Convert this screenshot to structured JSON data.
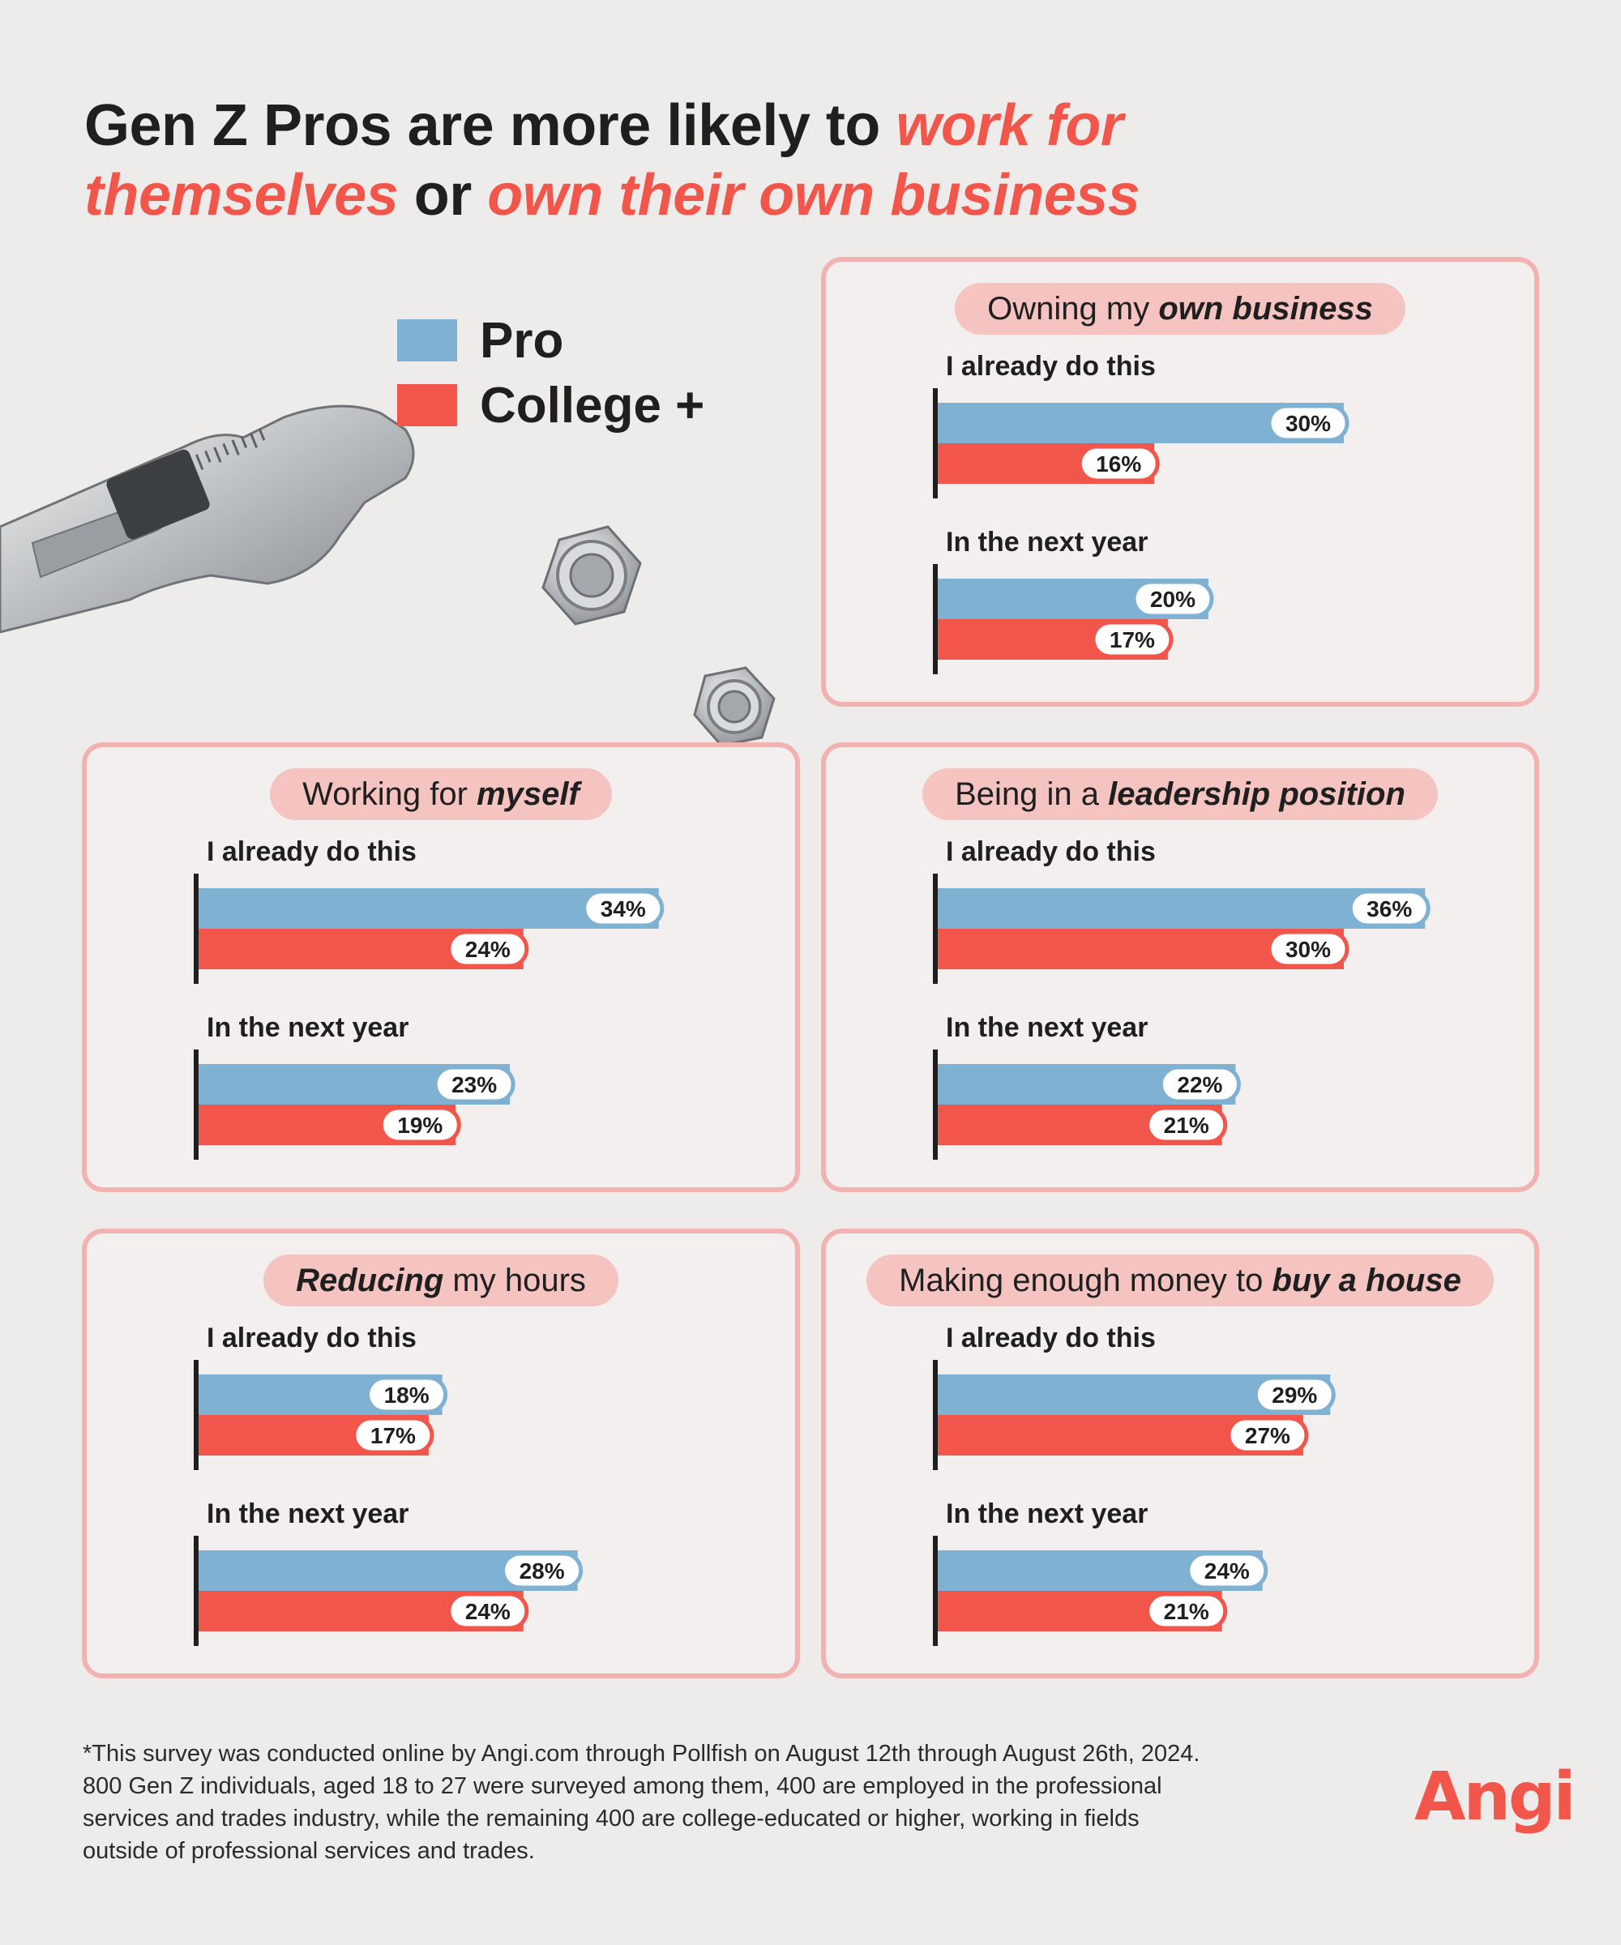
{
  "headline": {
    "part1": "Gen Z Pros are more likely to ",
    "accent1": "work for themselves",
    "part2": " or ",
    "accent2": "own their own business"
  },
  "legend": {
    "items": [
      {
        "label": "Pro",
        "color": "#7fb2d2"
      },
      {
        "label": "College +",
        "color": "#f2554a"
      }
    ]
  },
  "colors": {
    "pro": "#7fb2d2",
    "college": "#f2554a",
    "panel_border": "#f2b3b0",
    "pill": "#f5c4c0"
  },
  "chart_data": [
    {
      "type": "bar",
      "title_parts": [
        {
          "text": "Owning my ",
          "em": false
        },
        {
          "text": "own business",
          "em": true
        }
      ],
      "groups": [
        {
          "label": "I already do this",
          "pro": 30,
          "college": 16,
          "pro_label": "30%",
          "college_label": "16%"
        },
        {
          "label": "In the next year",
          "pro": 20,
          "college": 17,
          "pro_label": "20%",
          "college_label": "17%"
        }
      ]
    },
    {
      "type": "bar",
      "title_parts": [
        {
          "text": "Working for ",
          "em": false
        },
        {
          "text": "myself",
          "em": true
        }
      ],
      "groups": [
        {
          "label": "I already do this",
          "pro": 34,
          "college": 24,
          "pro_label": "34%",
          "college_label": "24%"
        },
        {
          "label": "In the next year",
          "pro": 23,
          "college": 19,
          "pro_label": "23%",
          "college_label": "19%"
        }
      ]
    },
    {
      "type": "bar",
      "title_parts": [
        {
          "text": "Being in a ",
          "em": false
        },
        {
          "text": "leadership position",
          "em": true
        }
      ],
      "groups": [
        {
          "label": "I already do this",
          "pro": 36,
          "college": 30,
          "pro_label": "36%",
          "college_label": "30%"
        },
        {
          "label": "In the next year",
          "pro": 22,
          "college": 21,
          "pro_label": "22%",
          "college_label": "21%"
        }
      ]
    },
    {
      "type": "bar",
      "title_parts": [
        {
          "text": "Reducing",
          "em": true
        },
        {
          "text": " my hours",
          "em": false
        }
      ],
      "groups": [
        {
          "label": "I already do this",
          "pro": 18,
          "college": 17,
          "pro_label": "18%",
          "college_label": "17%"
        },
        {
          "label": "In the next year",
          "pro": 28,
          "college": 24,
          "pro_label": "28%",
          "college_label": "24%"
        }
      ]
    },
    {
      "type": "bar",
      "title_parts": [
        {
          "text": "Making enough money to ",
          "em": false
        },
        {
          "text": "buy a house",
          "em": true
        }
      ],
      "groups": [
        {
          "label": "I already do this",
          "pro": 29,
          "college": 27,
          "pro_label": "29%",
          "college_label": "27%"
        },
        {
          "label": "In the next year",
          "pro": 24,
          "college": 21,
          "pro_label": "24%",
          "college_label": "21%"
        }
      ]
    }
  ],
  "footnote": [
    "*This survey was conducted online by Angi.com through Pollfish on August 12th through August 26th, 2024.",
    "800 Gen Z individuals, aged 18 to 27 were surveyed among them, 400 are employed in the professional",
    "services and trades industry, while the remaining 400 are college-educated or higher, working in fields",
    "outside of professional services and trades."
  ],
  "logo": "Angi"
}
